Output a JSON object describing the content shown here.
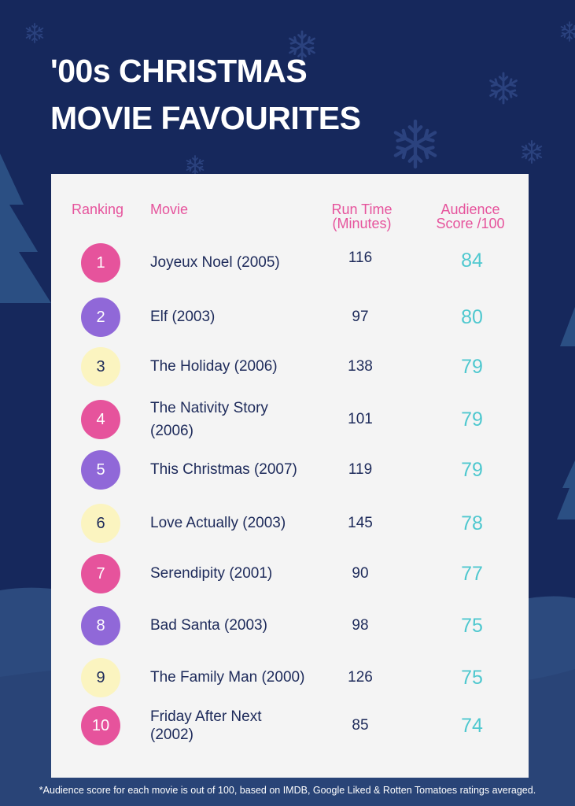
{
  "title": {
    "line1": "'00s CHRISTMAS",
    "line2": "MOVIE FAVOURITES"
  },
  "headers": {
    "ranking": "Ranking",
    "movie": "Movie",
    "runtime_line1": "Run Time",
    "runtime_line2": "(Minutes)",
    "score_line1": "Audience",
    "score_line2": "Score /100"
  },
  "colors": {
    "background": "#16285c",
    "card": "#f4f4f4",
    "header": "#e6539c",
    "pink": "#e6539c",
    "purple": "#9068d8",
    "yellow": "#fbf4c0",
    "score": "#4fc8cf",
    "text": "#1d2a5a"
  },
  "rows": [
    {
      "rank": "1",
      "badge": "pink",
      "movie": "Joyeux Noel (2005)",
      "runtime": "116",
      "score": "84"
    },
    {
      "rank": "2",
      "badge": "purple",
      "movie": "Elf (2003)",
      "runtime": "97",
      "score": "80"
    },
    {
      "rank": "3",
      "badge": "yellow",
      "movie": "The Holiday (2006)",
      "runtime": "138",
      "score": "79"
    },
    {
      "rank": "4",
      "badge": "pink",
      "movie": "The Nativity Story\n(2006)",
      "runtime": "101",
      "score": "79"
    },
    {
      "rank": "5",
      "badge": "purple",
      "movie": "This Christmas (2007)",
      "runtime": "119",
      "score": "79"
    },
    {
      "rank": "6",
      "badge": "yellow",
      "movie": "Love Actually (2003)",
      "runtime": "145",
      "score": "78"
    },
    {
      "rank": "7",
      "badge": "pink",
      "movie": "Serendipity (2001)",
      "runtime": "90",
      "score": "77"
    },
    {
      "rank": "8",
      "badge": "purple",
      "movie": "Bad Santa (2003)",
      "runtime": "98",
      "score": "75"
    },
    {
      "rank": "9",
      "badge": "yellow",
      "movie": "The Family Man (2000)",
      "runtime": "126",
      "score": "75"
    },
    {
      "rank": "10",
      "badge": "pink",
      "movie": "Friday After Next\n(2002)",
      "runtime": "85",
      "score": "74"
    }
  ],
  "footnote": "*Audience score for each movie is out of 100, based on IMDB, Google Liked & Rotten Tomatoes ratings averaged."
}
